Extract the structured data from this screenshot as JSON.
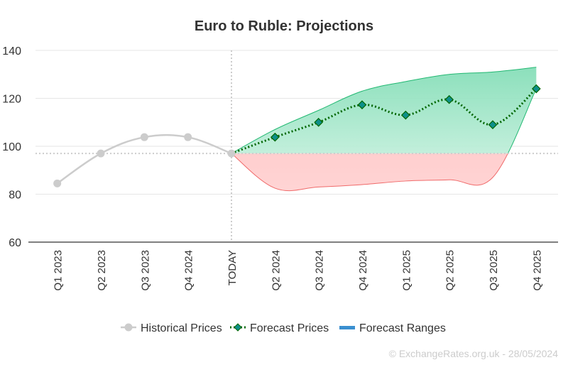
{
  "chart_data": {
    "type": "line",
    "title": "Euro to Ruble: Projections",
    "categories": [
      "Q1 2023",
      "Q2 2023",
      "Q3 2023",
      "Q4 2024",
      "TODAY",
      "Q2 2024",
      "Q3 2024",
      "Q4 2024",
      "Q1 2025",
      "Q2 2025",
      "Q3 2025",
      "Q4 2025"
    ],
    "ylim": [
      60,
      140
    ],
    "yticks": [
      60,
      80,
      100,
      120,
      140
    ],
    "grid": true,
    "reference_value": 97,
    "today_index": 4,
    "series": [
      {
        "name": "Historical Prices",
        "color": "#cccccc",
        "marker": "circle",
        "values": [
          84.5,
          97,
          103.8,
          103.8,
          97,
          null,
          null,
          null,
          null,
          null,
          null,
          null
        ]
      },
      {
        "name": "Forecast Prices",
        "color": "#006600",
        "marker_fill": "#0e8f8a",
        "marker": "diamond",
        "values": [
          null,
          null,
          null,
          null,
          97,
          103.8,
          110,
          117.3,
          113,
          119.5,
          109,
          124
        ]
      },
      {
        "name": "Forecast Ranges",
        "color": "#3a8fd0",
        "upper": [
          null,
          null,
          null,
          null,
          97,
          107,
          115,
          123,
          127,
          130,
          131,
          133
        ],
        "lower": [
          null,
          null,
          null,
          null,
          97,
          82.5,
          83,
          84,
          85.5,
          86,
          87,
          124
        ]
      }
    ],
    "legend_placement": "bottom-center",
    "credit": "© ExchangeRates.org.uk - 28/05/2024"
  }
}
